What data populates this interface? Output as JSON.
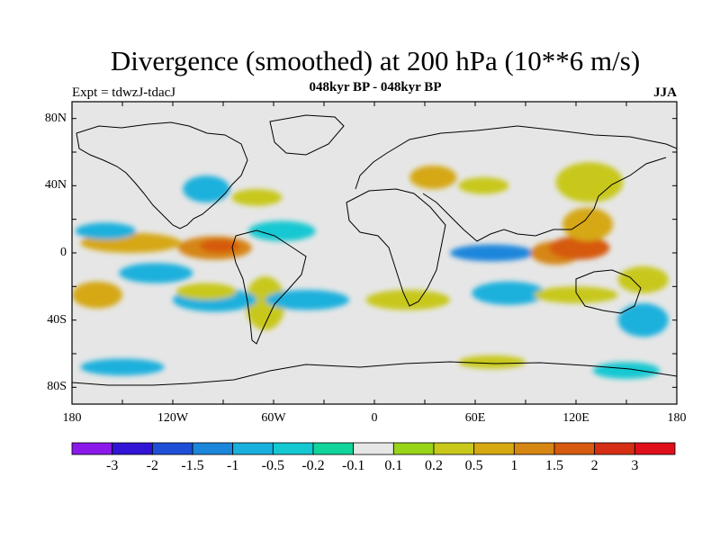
{
  "title": "Divergence (smoothed) at 200 hPa (10**6 m/s)",
  "subtitle": "048kyr BP - 048kyr BP",
  "left_string": "Expt = tdwzJ-tdacJ",
  "right_string": "JJA",
  "lat_labels": [
    {
      "text": "80N",
      "lat": 80
    },
    {
      "text": "40N",
      "lat": 40
    },
    {
      "text": "0",
      "lat": 0
    },
    {
      "text": "40S",
      "lat": -40
    },
    {
      "text": "80S",
      "lat": -80
    }
  ],
  "lon_labels": [
    {
      "text": "180",
      "lon": -180
    },
    {
      "text": "120W",
      "lon": -120
    },
    {
      "text": "60W",
      "lon": -60
    },
    {
      "text": "0",
      "lon": 0
    },
    {
      "text": "60E",
      "lon": 60
    },
    {
      "text": "120E",
      "lon": 120
    },
    {
      "text": "180",
      "lon": 180
    }
  ],
  "colorbar": {
    "levels": [
      "-3",
      "-2",
      "-1.5",
      "-1",
      "-0.5",
      "-0.2",
      "-0.1",
      "0.1",
      "0.2",
      "0.5",
      "1",
      "1.5",
      "2",
      "3"
    ],
    "colors": [
      "#8a19ea",
      "#3214d6",
      "#1f4fd6",
      "#1c86db",
      "#1ab0dd",
      "#14c8d2",
      "#10d49a",
      "#e6e6e6",
      "#98d418",
      "#c8c81a",
      "#d6a812",
      "#d68612",
      "#d65a10",
      "#d62e14",
      "#e0101a"
    ]
  },
  "map_data": {
    "domain": {
      "lon": [
        -180,
        180
      ],
      "lat": [
        -90,
        90
      ]
    },
    "blobs": [
      {
        "lon": -95,
        "lat": 3,
        "rx": 22,
        "ry": 7,
        "color": "#d68612"
      },
      {
        "lon": -92,
        "lat": 4,
        "rx": 12,
        "ry": 4,
        "color": "#d65a10"
      },
      {
        "lon": -145,
        "lat": 6,
        "rx": 30,
        "ry": 6,
        "color": "#d6a812"
      },
      {
        "lon": -130,
        "lat": -12,
        "rx": 22,
        "ry": 6,
        "color": "#1ab0dd"
      },
      {
        "lon": -160,
        "lat": 13,
        "rx": 18,
        "ry": 5,
        "color": "#1ab0dd"
      },
      {
        "lon": -100,
        "lat": 38,
        "rx": 14,
        "ry": 8,
        "color": "#1ab0dd"
      },
      {
        "lon": -70,
        "lat": 33,
        "rx": 15,
        "ry": 5,
        "color": "#c8c81a"
      },
      {
        "lon": -55,
        "lat": 13,
        "rx": 20,
        "ry": 6,
        "color": "#14c8d2"
      },
      {
        "lon": -65,
        "lat": -30,
        "rx": 12,
        "ry": 16,
        "color": "#c8c81a"
      },
      {
        "lon": -95,
        "lat": -28,
        "rx": 25,
        "ry": 7,
        "color": "#1ab0dd"
      },
      {
        "lon": -100,
        "lat": -23,
        "rx": 18,
        "ry": 5,
        "color": "#c8c81a"
      },
      {
        "lon": -165,
        "lat": -25,
        "rx": 15,
        "ry": 8,
        "color": "#d6a812"
      },
      {
        "lon": -150,
        "lat": -68,
        "rx": 25,
        "ry": 5,
        "color": "#1ab0dd"
      },
      {
        "lon": -40,
        "lat": -28,
        "rx": 25,
        "ry": 6,
        "color": "#1ab0dd"
      },
      {
        "lon": 20,
        "lat": -28,
        "rx": 25,
        "ry": 6,
        "color": "#c8c81a"
      },
      {
        "lon": 35,
        "lat": 45,
        "rx": 14,
        "ry": 7,
        "color": "#d6a812"
      },
      {
        "lon": 65,
        "lat": 40,
        "rx": 15,
        "ry": 5,
        "color": "#c8c81a"
      },
      {
        "lon": 70,
        "lat": 0,
        "rx": 25,
        "ry": 5,
        "color": "#1c86db"
      },
      {
        "lon": 80,
        "lat": -24,
        "rx": 22,
        "ry": 7,
        "color": "#1ab0dd"
      },
      {
        "lon": 108,
        "lat": 0,
        "rx": 15,
        "ry": 7,
        "color": "#d68612"
      },
      {
        "lon": 122,
        "lat": 3,
        "rx": 18,
        "ry": 7,
        "color": "#d65a10"
      },
      {
        "lon": 127,
        "lat": 17,
        "rx": 15,
        "ry": 10,
        "color": "#d6a812"
      },
      {
        "lon": 128,
        "lat": 42,
        "rx": 20,
        "ry": 12,
        "color": "#c8c81a"
      },
      {
        "lon": 160,
        "lat": -16,
        "rx": 15,
        "ry": 8,
        "color": "#c8c81a"
      },
      {
        "lon": 160,
        "lat": -40,
        "rx": 15,
        "ry": 10,
        "color": "#1ab0dd"
      },
      {
        "lon": 120,
        "lat": -25,
        "rx": 25,
        "ry": 5,
        "color": "#c8c81a"
      },
      {
        "lon": 70,
        "lat": -65,
        "rx": 20,
        "ry": 4,
        "color": "#c8c81a"
      },
      {
        "lon": 150,
        "lat": -70,
        "rx": 20,
        "ry": 5,
        "color": "#14c8d2"
      }
    ]
  }
}
